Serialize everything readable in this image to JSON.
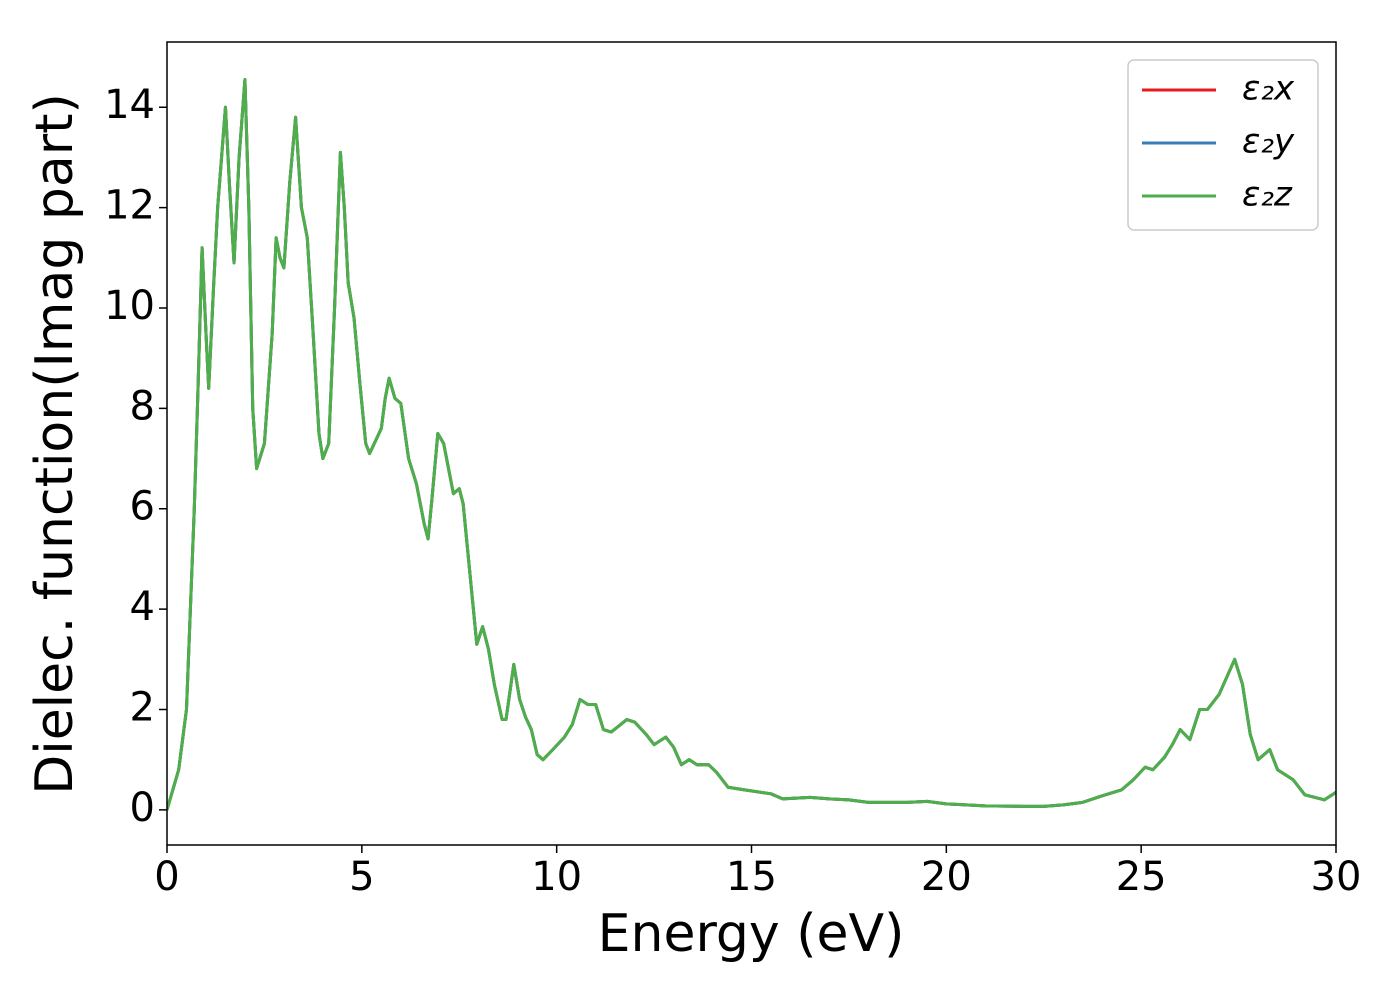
{
  "chart_data": {
    "type": "line",
    "xlabel": "Energy (eV)",
    "ylabel": "Dielec. function(Imag part)",
    "xlim": [
      0,
      30
    ],
    "ylim": [
      -0.7,
      15.3
    ],
    "xticks": [
      0,
      5,
      10,
      15,
      20,
      25,
      30
    ],
    "yticks": [
      0,
      2,
      4,
      6,
      8,
      10,
      12,
      14
    ],
    "legend": "upper right",
    "x": [
      0,
      0.3,
      0.5,
      0.7,
      0.8,
      0.9,
      1.0,
      1.07,
      1.2,
      1.3,
      1.5,
      1.6,
      1.72,
      1.85,
      2.0,
      2.1,
      2.2,
      2.3,
      2.5,
      2.7,
      2.8,
      2.9,
      3.0,
      3.15,
      3.3,
      3.45,
      3.6,
      3.75,
      3.9,
      4.0,
      4.15,
      4.3,
      4.45,
      4.55,
      4.65,
      4.8,
      4.95,
      5.1,
      5.2,
      5.35,
      5.5,
      5.6,
      5.7,
      5.85,
      6.0,
      6.2,
      6.4,
      6.6,
      6.7,
      6.8,
      6.95,
      7.1,
      7.2,
      7.35,
      7.5,
      7.6,
      7.8,
      7.95,
      8.1,
      8.25,
      8.4,
      8.6,
      8.7,
      8.9,
      9.05,
      9.2,
      9.35,
      9.5,
      9.65,
      9.9,
      10.2,
      10.4,
      10.6,
      10.8,
      11.0,
      11.2,
      11.4,
      11.8,
      12.0,
      12.3,
      12.5,
      12.8,
      13.0,
      13.2,
      13.4,
      13.6,
      13.9,
      14.1,
      14.4,
      14.8,
      15.5,
      15.8,
      16.5,
      17.0,
      17.5,
      18,
      19,
      19.5,
      20,
      21,
      22,
      22.5,
      23,
      23.5,
      24,
      24.5,
      24.8,
      25.1,
      25.3,
      25.6,
      25.8,
      26.0,
      26.25,
      26.5,
      26.7,
      27.0,
      27.4,
      27.6,
      27.8,
      28.0,
      28.3,
      28.5,
      28.9,
      29.2,
      29.7,
      30
    ],
    "series": [
      {
        "name": "ε₂x",
        "color": "#e41a1c",
        "values": [
          0,
          0.8,
          2.0,
          6.0,
          8.5,
          11.2,
          9.5,
          8.4,
          10.5,
          12.0,
          14.0,
          12.5,
          10.9,
          13.0,
          14.55,
          12.0,
          8.0,
          6.8,
          7.3,
          9.5,
          11.4,
          11.0,
          10.8,
          12.5,
          13.8,
          12.0,
          11.4,
          9.5,
          7.5,
          7.0,
          7.3,
          10.0,
          13.1,
          12.0,
          10.5,
          9.8,
          8.5,
          7.3,
          7.1,
          7.35,
          7.6,
          8.2,
          8.6,
          8.2,
          8.1,
          7.0,
          6.5,
          5.7,
          5.4,
          6.2,
          7.5,
          7.3,
          6.9,
          6.3,
          6.4,
          6.1,
          4.5,
          3.3,
          3.65,
          3.2,
          2.5,
          1.8,
          1.8,
          2.9,
          2.2,
          1.85,
          1.6,
          1.1,
          1.0,
          1.2,
          1.45,
          1.7,
          2.2,
          2.1,
          2.1,
          1.6,
          1.55,
          1.8,
          1.75,
          1.5,
          1.3,
          1.45,
          1.25,
          0.9,
          1.0,
          0.9,
          0.9,
          0.75,
          0.45,
          0.4,
          0.32,
          0.22,
          0.25,
          0.22,
          0.2,
          0.15,
          0.15,
          0.17,
          0.12,
          0.08,
          0.07,
          0.07,
          0.1,
          0.15,
          0.28,
          0.4,
          0.6,
          0.85,
          0.8,
          1.05,
          1.3,
          1.6,
          1.4,
          2.0,
          2.0,
          2.3,
          3.0,
          2.5,
          1.5,
          1.0,
          1.2,
          0.8,
          0.6,
          0.3,
          0.2,
          0.35
        ]
      },
      {
        "name": "ε₂y",
        "color": "#377eb8",
        "values": [
          0,
          0.8,
          2.0,
          6.0,
          8.5,
          11.2,
          9.5,
          8.4,
          10.5,
          12.0,
          14.0,
          12.5,
          10.9,
          13.0,
          14.55,
          12.0,
          8.0,
          6.8,
          7.3,
          9.5,
          11.4,
          11.0,
          10.8,
          12.5,
          13.8,
          12.0,
          11.4,
          9.5,
          7.5,
          7.0,
          7.3,
          10.0,
          13.1,
          12.0,
          10.5,
          9.8,
          8.5,
          7.3,
          7.1,
          7.35,
          7.6,
          8.2,
          8.6,
          8.2,
          8.1,
          7.0,
          6.5,
          5.7,
          5.4,
          6.2,
          7.5,
          7.3,
          6.9,
          6.3,
          6.4,
          6.1,
          4.5,
          3.3,
          3.65,
          3.2,
          2.5,
          1.8,
          1.8,
          2.9,
          2.2,
          1.85,
          1.6,
          1.1,
          1.0,
          1.2,
          1.45,
          1.7,
          2.2,
          2.1,
          2.1,
          1.6,
          1.55,
          1.8,
          1.75,
          1.5,
          1.3,
          1.45,
          1.25,
          0.9,
          1.0,
          0.9,
          0.9,
          0.75,
          0.45,
          0.4,
          0.32,
          0.22,
          0.25,
          0.22,
          0.2,
          0.15,
          0.15,
          0.17,
          0.12,
          0.08,
          0.07,
          0.07,
          0.1,
          0.15,
          0.28,
          0.4,
          0.6,
          0.85,
          0.8,
          1.05,
          1.3,
          1.6,
          1.4,
          2.0,
          2.0,
          2.3,
          3.0,
          2.5,
          1.5,
          1.0,
          1.2,
          0.8,
          0.6,
          0.3,
          0.2,
          0.35
        ]
      },
      {
        "name": "ε₂z",
        "color": "#4daf4a",
        "values": [
          0,
          0.8,
          2.0,
          6.0,
          8.5,
          11.2,
          9.5,
          8.4,
          10.5,
          12.0,
          14.0,
          12.5,
          10.9,
          13.0,
          14.55,
          12.0,
          8.0,
          6.8,
          7.3,
          9.5,
          11.4,
          11.0,
          10.8,
          12.5,
          13.8,
          12.0,
          11.4,
          9.5,
          7.5,
          7.0,
          7.3,
          10.0,
          13.1,
          12.0,
          10.5,
          9.8,
          8.5,
          7.3,
          7.1,
          7.35,
          7.6,
          8.2,
          8.6,
          8.2,
          8.1,
          7.0,
          6.5,
          5.7,
          5.4,
          6.2,
          7.5,
          7.3,
          6.9,
          6.3,
          6.4,
          6.1,
          4.5,
          3.3,
          3.65,
          3.2,
          2.5,
          1.8,
          1.8,
          2.9,
          2.2,
          1.85,
          1.6,
          1.1,
          1.0,
          1.2,
          1.45,
          1.7,
          2.2,
          2.1,
          2.1,
          1.6,
          1.55,
          1.8,
          1.75,
          1.5,
          1.3,
          1.45,
          1.25,
          0.9,
          1.0,
          0.9,
          0.9,
          0.75,
          0.45,
          0.4,
          0.32,
          0.22,
          0.25,
          0.22,
          0.2,
          0.15,
          0.15,
          0.17,
          0.12,
          0.08,
          0.07,
          0.07,
          0.1,
          0.15,
          0.28,
          0.4,
          0.6,
          0.85,
          0.8,
          1.05,
          1.3,
          1.6,
          1.4,
          2.0,
          2.0,
          2.3,
          3.0,
          2.5,
          1.5,
          1.0,
          1.2,
          0.8,
          0.6,
          0.3,
          0.2,
          0.35
        ]
      }
    ]
  }
}
